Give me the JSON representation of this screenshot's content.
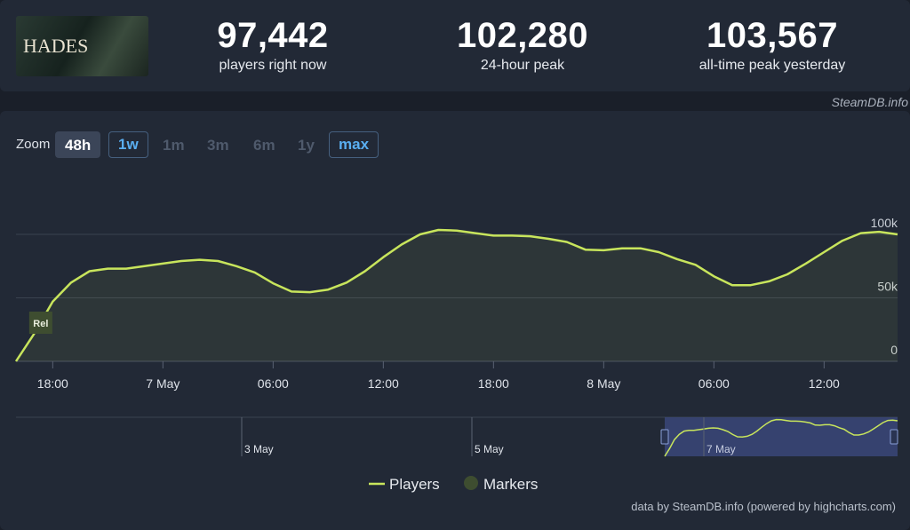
{
  "game": {
    "name": "HADES"
  },
  "stats": [
    {
      "value": "97,442",
      "label": "players right now"
    },
    {
      "value": "102,280",
      "label": "24-hour peak"
    },
    {
      "value": "103,567",
      "label": "all-time peak yesterday"
    }
  ],
  "source": "SteamDB.info",
  "zoom": {
    "label": "Zoom",
    "options": [
      "48h",
      "1w",
      "1m",
      "3m",
      "6m",
      "1y",
      "max"
    ]
  },
  "chart_data": {
    "type": "line",
    "x": [
      16,
      17,
      18,
      19,
      20,
      21,
      22,
      23,
      24,
      25,
      26,
      27,
      28,
      29,
      30,
      31,
      32,
      33,
      34,
      35,
      36,
      37,
      38,
      39,
      40,
      41,
      42,
      43,
      44,
      45,
      46,
      47,
      48,
      49,
      50,
      51,
      52,
      53,
      54,
      55,
      56,
      57,
      58,
      59,
      60,
      61,
      62,
      63,
      64
    ],
    "series": [
      {
        "name": "Players",
        "color": "#c8e55c",
        "values": [
          0,
          22000,
          47000,
          62000,
          71000,
          73000,
          73000,
          75000,
          77000,
          79000,
          80000,
          79000,
          75000,
          70000,
          61500,
          55000,
          54500,
          56500,
          62000,
          71000,
          82000,
          92000,
          100000,
          103500,
          103000,
          101000,
          99000,
          99000,
          98500,
          96500,
          94000,
          88000,
          87500,
          89000,
          89000,
          86000,
          80500,
          76000,
          67000,
          60000,
          60000,
          63000,
          68500,
          77000,
          86000,
          95000,
          101000,
          102000,
          100000
        ]
      }
    ],
    "markers": {
      "name": "Markers",
      "color": "#3e4d30",
      "points": [
        {
          "x": 17.3,
          "label": "Rel"
        }
      ]
    },
    "xlim": [
      16,
      64
    ],
    "xticks": [
      {
        "value": 18,
        "label": "18:00"
      },
      {
        "value": 24,
        "label": "7 May"
      },
      {
        "value": 30,
        "label": "06:00"
      },
      {
        "value": 36,
        "label": "12:00"
      },
      {
        "value": 42,
        "label": "18:00"
      },
      {
        "value": 48,
        "label": "8 May"
      },
      {
        "value": 54,
        "label": "06:00"
      },
      {
        "value": 60,
        "label": "12:00"
      }
    ],
    "ylim": [
      0,
      150000
    ],
    "yticks": [
      {
        "value": 0,
        "label": "0"
      },
      {
        "value": 50000,
        "label": "50k"
      },
      {
        "value": 100000,
        "label": "100k"
      }
    ],
    "grid": true
  },
  "navigator": {
    "labels": [
      "3 May",
      "5 May",
      "7 May"
    ]
  },
  "credit": "data by SteamDB.info (powered by highcharts.com)"
}
